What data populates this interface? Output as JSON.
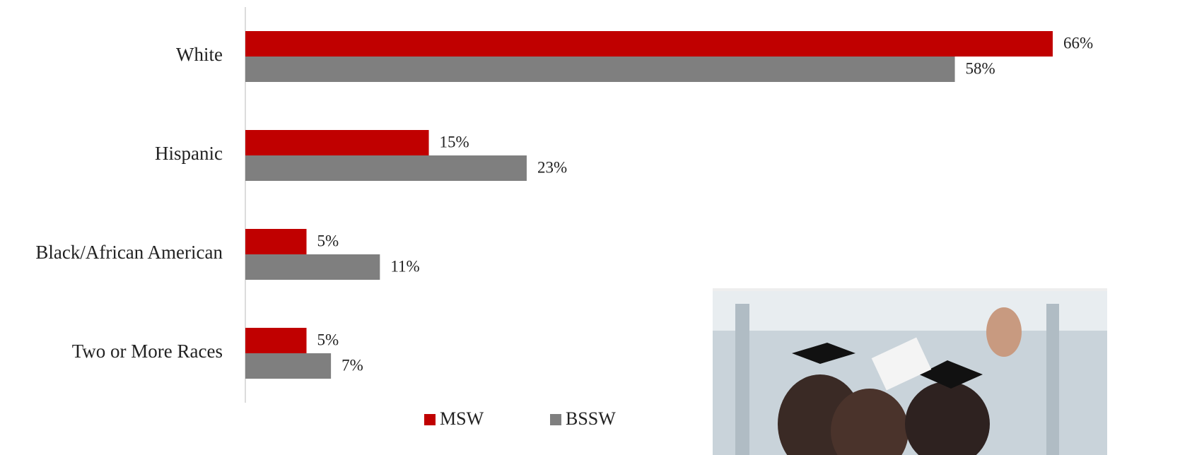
{
  "chart_data": {
    "type": "hbar",
    "categories": [
      "White",
      "Hispanic",
      "Black/African American",
      "Two or More Races"
    ],
    "series": [
      {
        "name": "MSW",
        "color": "#c00000",
        "values": [
          66,
          15,
          5,
          5
        ],
        "value_labels": [
          "66%",
          "15%",
          "5%",
          "5%"
        ]
      },
      {
        "name": "BSSW",
        "color": "#7f7f7f",
        "values": [
          58,
          23,
          11,
          7
        ],
        "value_labels": [
          "58%",
          "23%",
          "11%",
          "7%"
        ]
      }
    ],
    "xlim": [
      0,
      76
    ]
  }
}
